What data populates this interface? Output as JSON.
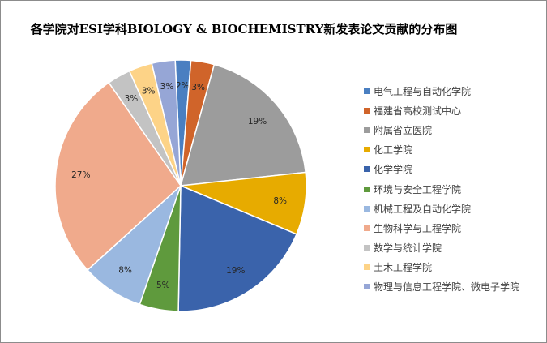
{
  "chart_data": {
    "type": "pie",
    "title": "各学院对ESI学科BIOLOGY & BIOCHEMISTRY新发表论文贡献的分布图",
    "legend_position": "right",
    "slices": [
      {
        "name": "电气工程与自动化学院",
        "value": 2,
        "label": "2%",
        "color": "#4a7fc1"
      },
      {
        "name": "福建省高校测试中心",
        "value": 3,
        "label": "3%",
        "color": "#d0642a"
      },
      {
        "name": "附属省立医院",
        "value": 19,
        "label": "19%",
        "color": "#9c9c9c"
      },
      {
        "name": "化工学院",
        "value": 8,
        "label": "8%",
        "color": "#e7ab00"
      },
      {
        "name": "化学学院",
        "value": 19,
        "label": "19%",
        "color": "#3a63ab"
      },
      {
        "name": "环境与安全工程学院",
        "value": 5,
        "label": "5%",
        "color": "#5f9a3d"
      },
      {
        "name": "机械工程及自动化学院",
        "value": 8,
        "label": "8%",
        "color": "#9ab8e0"
      },
      {
        "name": "生物科学与工程学院",
        "value": 27,
        "label": "27%",
        "color": "#f0aa8c"
      },
      {
        "name": "数学与统计学院",
        "value": 3,
        "label": "3%",
        "color": "#c3c3c3"
      },
      {
        "name": "土木工程学院",
        "value": 3,
        "label": "3%",
        "color": "#fdd387"
      },
      {
        "name": "物理与信息工程学院、微电子学院",
        "value": 3,
        "label": "3%",
        "color": "#96a6d6"
      }
    ]
  }
}
